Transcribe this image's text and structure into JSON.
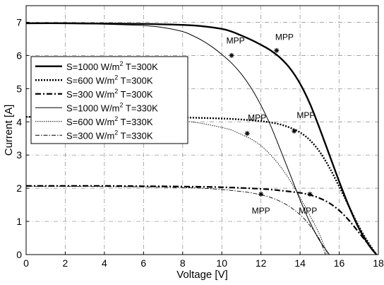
{
  "chart_data": {
    "type": "line",
    "xlabel": "Voltage [V]",
    "ylabel": "Current [A]",
    "xlim": [
      0,
      18
    ],
    "ylim": [
      0,
      7.5
    ],
    "xticks": [
      "0",
      "2",
      "4",
      "6",
      "8",
      "10",
      "12",
      "14",
      "16",
      "18"
    ],
    "yticks": [
      "0",
      "1",
      "2",
      "3",
      "4",
      "5",
      "6",
      "7"
    ],
    "grid": true,
    "grid_style": "dash-dot",
    "legend_position": "left",
    "series": [
      {
        "name": "S=1000 W/m² T=300K",
        "label_main": "S=1000 W/m",
        "label_sup": "2",
        "label_tail": " T=300K",
        "style": "solid-thick",
        "x": [
          0,
          2,
          4,
          6,
          8,
          9,
          10,
          10.5,
          11,
          11.5,
          12,
          12.5,
          13,
          13.5,
          14,
          14.5,
          15,
          15.5,
          16,
          16.5,
          17,
          17.5,
          17.9
        ],
        "y": [
          6.97,
          6.97,
          6.96,
          6.95,
          6.92,
          6.88,
          6.8,
          6.72,
          6.6,
          6.47,
          6.32,
          6.15,
          5.92,
          5.6,
          5.15,
          4.55,
          3.8,
          3.0,
          2.2,
          1.45,
          0.8,
          0.3,
          0.0
        ]
      },
      {
        "name": "S=600 W/m² T=300K",
        "label_main": "S=600 W/m",
        "label_sup": "2",
        "label_tail": " T=300K",
        "style": "dotted-thick",
        "x": [
          0,
          2,
          4,
          6,
          8,
          10,
          11,
          12,
          12.5,
          13,
          13.5,
          14,
          14.5,
          15,
          15.5,
          16,
          16.5,
          17,
          17.5,
          17.9
        ],
        "y": [
          4.15,
          4.15,
          4.15,
          4.14,
          4.13,
          4.1,
          4.07,
          4.02,
          3.98,
          3.92,
          3.82,
          3.68,
          3.45,
          3.1,
          2.62,
          2.05,
          1.45,
          0.85,
          0.35,
          0.0
        ]
      },
      {
        "name": "S=300 W/m² T=300K",
        "label_main": "S=300 W/m",
        "label_sup": "2",
        "label_tail": " T=300K",
        "style": "dashdot-thick",
        "x": [
          0,
          2,
          4,
          6,
          8,
          10,
          12,
          13,
          14,
          14.5,
          15,
          15.5,
          16,
          16.5,
          17,
          17.5,
          17.9
        ],
        "y": [
          2.07,
          2.07,
          2.07,
          2.06,
          2.05,
          2.03,
          1.98,
          1.93,
          1.86,
          1.8,
          1.7,
          1.55,
          1.33,
          1.03,
          0.67,
          0.3,
          0.0
        ]
      },
      {
        "name": "S=1000 W/m² T=330K",
        "label_main": "S=1000 W/m",
        "label_sup": "2",
        "label_tail": " T=330K",
        "style": "solid-thin",
        "x": [
          0,
          2,
          4,
          6,
          7,
          8,
          8.5,
          9,
          9.5,
          10,
          10.5,
          11,
          11.5,
          12,
          12.5,
          13,
          13.5,
          14,
          14.5,
          15,
          15.5
        ],
        "y": [
          6.97,
          6.96,
          6.94,
          6.9,
          6.84,
          6.72,
          6.6,
          6.45,
          6.26,
          6.03,
          5.77,
          5.44,
          5.02,
          4.5,
          3.88,
          3.15,
          2.4,
          1.65,
          0.98,
          0.42,
          0.0
        ]
      },
      {
        "name": "S=600 W/m² T=330K",
        "label_main": "S=600 W/m",
        "label_sup": "2",
        "label_tail": " T=330K",
        "style": "dotted-thin",
        "x": [
          0,
          2,
          4,
          6,
          7,
          8,
          9,
          10,
          10.5,
          11,
          11.5,
          12,
          12.5,
          13,
          13.5,
          14,
          14.5,
          15,
          15.4
        ],
        "y": [
          4.15,
          4.14,
          4.13,
          4.11,
          4.08,
          4.03,
          3.95,
          3.83,
          3.75,
          3.62,
          3.48,
          3.28,
          3.0,
          2.65,
          2.22,
          1.72,
          1.18,
          0.6,
          0.0
        ]
      },
      {
        "name": "S=300 W/m² T=330K",
        "label_main": "S=300 W/m",
        "label_sup": "2",
        "label_tail": " T=330K",
        "style": "dashdot-thin",
        "x": [
          0,
          2,
          4,
          6,
          8,
          9,
          10,
          11,
          11.5,
          12,
          12.5,
          13,
          13.5,
          14,
          14.5,
          15,
          15.3
        ],
        "y": [
          2.06,
          2.06,
          2.05,
          2.04,
          2.02,
          2.0,
          1.96,
          1.9,
          1.86,
          1.8,
          1.72,
          1.6,
          1.43,
          1.2,
          0.88,
          0.45,
          0.0
        ]
      }
    ],
    "mpp_points": [
      {
        "x": 12.8,
        "y": 6.15
      },
      {
        "x": 10.5,
        "y": 6.0
      },
      {
        "x": 13.7,
        "y": 3.72
      },
      {
        "x": 11.3,
        "y": 3.65
      },
      {
        "x": 14.5,
        "y": 1.82
      },
      {
        "x": 12.0,
        "y": 1.82
      }
    ],
    "annotations": [
      {
        "text": "MPP",
        "x": 13.2,
        "y": 6.55
      },
      {
        "text": "MPP",
        "x": 10.7,
        "y": 6.45
      },
      {
        "text": "MPP",
        "x": 14.3,
        "y": 4.2
      },
      {
        "text": "MPP",
        "x": 11.8,
        "y": 4.12
      },
      {
        "text": "MPP",
        "x": 14.4,
        "y": 1.32
      },
      {
        "text": "MPP",
        "x": 12.0,
        "y": 1.32
      }
    ]
  }
}
